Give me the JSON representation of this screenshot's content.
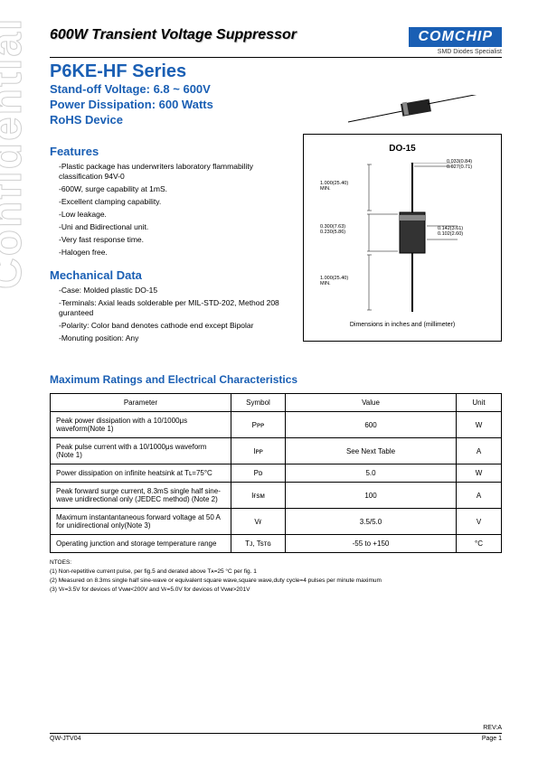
{
  "watermark": "Confidential",
  "header": {
    "title": "600W Transient Voltage Suppressor",
    "logo": "COMCHIP",
    "logo_sub": "SMD Diodes Specialist"
  },
  "series": {
    "title": "P6KE-HF Series",
    "spec1": "Stand-off Voltage: 6.8 ~ 600V",
    "spec2": "Power Dissipation: 600 Watts",
    "spec3": "RoHS Device"
  },
  "features": {
    "title": "Features",
    "items": [
      "-Plastic package has underwriters laboratory flammability classification 94V-0",
      "-600W, surge capability at 1mS.",
      "-Excellent clamping capability.",
      "-Low leakage.",
      "-Uni and Bidirectional unit.",
      "-Very fast response time.",
      "-Halogen free."
    ]
  },
  "mechanical": {
    "title": "Mechanical Data",
    "items": [
      "-Case: Molded plastic DO-15",
      "-Terminals: Axial leads solderable per MIL-STD-202, Method 208 guranteed",
      "-Polarity: Color band denotes cathode end except Bipolar",
      "-Monuting position: Any"
    ]
  },
  "package": {
    "title": "DO-15",
    "footer": "Dimensions in inches and (millimeter)",
    "dims": {
      "top_lead": "1.000(25.40)\nMIN.",
      "diameter": "0.033(0.84)\n0.027(0.71)",
      "body_dia": "0.300(7.63)\n0.230(5.86)",
      "body_len": "0.142(3.61)\n0.102(2.60)",
      "bot_lead": "1.000(25.40)\nMIN."
    }
  },
  "ratings": {
    "title": "Maximum Ratings and Electrical Characteristics",
    "headers": [
      "Parameter",
      "Symbol",
      "Value",
      "Unit"
    ],
    "rows": [
      [
        "Peak power dissipation with a 10/1000μs waveform(Note 1)",
        "Pᴘᴘ",
        "600",
        "W"
      ],
      [
        "Peak pulse current  with a 10/1000μs waveform (Note 1)",
        "Iᴘᴘ",
        "See Next Table",
        "A"
      ],
      [
        "Power dissipation on infinite heatsink at Tʟ=75°C",
        "Pᴅ",
        "5.0",
        "W"
      ],
      [
        "Peak forward surge current, 8.3mS single half sine-wave unidirectional only (JEDEC method) (Note 2)",
        "Iғsᴍ",
        "100",
        "A"
      ],
      [
        "Maximum instantantaneous forward voltage at 50 A for unidirectional only(Note 3)",
        "Vғ",
        "3.5/5.0",
        "V"
      ],
      [
        "Operating junction and storage temperature range",
        "Tᴊ, Tsᴛɢ",
        "-55 to +150",
        "°C"
      ]
    ]
  },
  "notes": {
    "title": "NTOES:",
    "items": [
      "(1) Non-repetitive current pulse, per fig.5 and derated above Tᴀ=25 °C per fig. 1",
      "(2) Measured on 8.3ms single half sine-wave or equivalent square wave,square wave,duty cycle=4 pulses per minute maximum",
      "(3) Vғ=3.5V for devices of Vᴡᴍ<200V and Vғ=5.0V for devices of Vᴡᴍ>201V"
    ]
  },
  "footer": {
    "left": "QW-JTV04",
    "right": "Page 1",
    "rev": "REV:A"
  }
}
